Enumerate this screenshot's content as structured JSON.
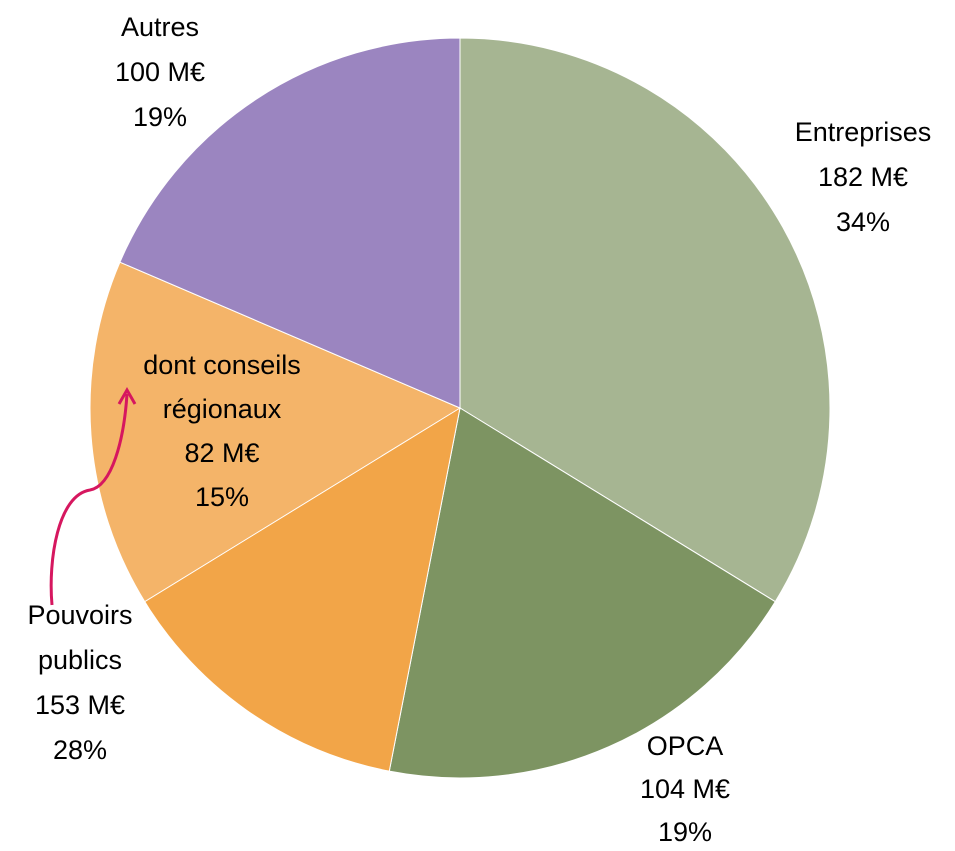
{
  "chart_data": {
    "type": "pie",
    "categories": [
      "Entreprises",
      "OPCA",
      "Pouvoirs publics",
      "Autres"
    ],
    "values": [
      182,
      104,
      153,
      100
    ],
    "value_labels": [
      "182 M€",
      "104 M€",
      "153 M€",
      "100 M€"
    ],
    "percent_labels": [
      "34%",
      "19%",
      "28%",
      "19%"
    ],
    "colors": [
      "#a6b592",
      "#7d9462",
      "#f2a548",
      "#9b85c0"
    ],
    "breakdowns": [
      null,
      null,
      {
        "category": "dont conseils régionaux",
        "value": 82,
        "value_label": "82 M€",
        "percent_label": "15%",
        "color": "#f4b469"
      },
      null
    ]
  }
}
